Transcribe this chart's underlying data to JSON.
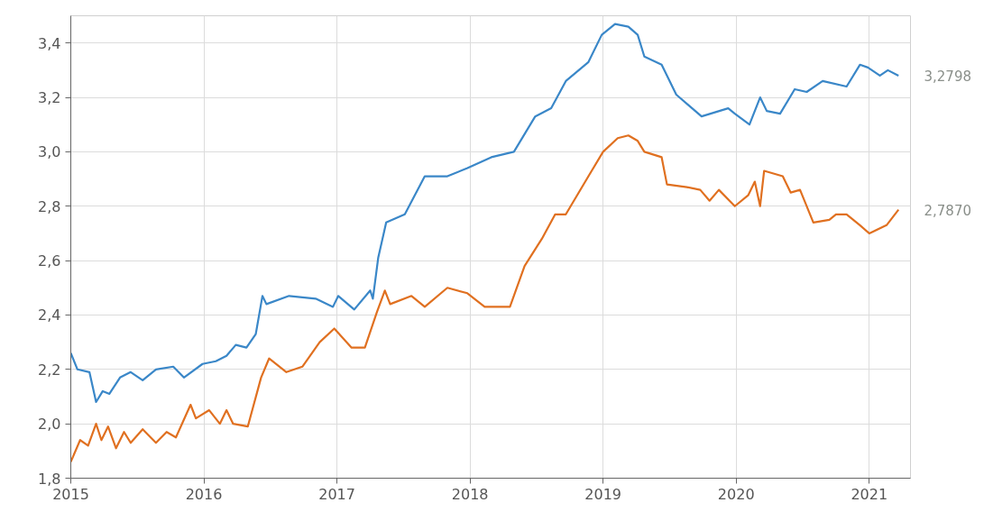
{
  "chart_data": {
    "type": "line",
    "xlim": [
      2015,
      2021.31
    ],
    "ylim": [
      1.8,
      3.5
    ],
    "xticks": [
      2015,
      2016,
      2017,
      2018,
      2019,
      2020,
      2021
    ],
    "yticks": [
      {
        "value": 1.8,
        "label": "1,8"
      },
      {
        "value": 2.0,
        "label": "2,0"
      },
      {
        "value": 2.2,
        "label": "2,2"
      },
      {
        "value": 2.4,
        "label": "2,4"
      },
      {
        "value": 2.6,
        "label": "2,6"
      },
      {
        "value": 2.8,
        "label": "2,8"
      },
      {
        "value": 3.0,
        "label": "3,0"
      },
      {
        "value": 3.2,
        "label": "3,2"
      },
      {
        "value": 3.4,
        "label": "3,4"
      }
    ],
    "grid": true,
    "marker": "none",
    "line_style": "solid",
    "series": [
      {
        "color": "#3a87c8",
        "x": [
          2015.0,
          2015.05,
          2015.14,
          2015.19,
          2015.24,
          2015.29,
          2015.37,
          2015.45,
          2015.54,
          2015.64,
          2015.77,
          2015.85,
          2015.99,
          2016.09,
          2016.17,
          2016.24,
          2016.32,
          2016.39,
          2016.44,
          2016.47,
          2016.64,
          2016.84,
          2016.97,
          2017.01,
          2017.13,
          2017.25,
          2017.27,
          2017.31,
          2017.37,
          2017.51,
          2017.66,
          2017.83,
          2017.98,
          2018.16,
          2018.33,
          2018.49,
          2018.61,
          2018.72,
          2018.89,
          2018.99,
          2019.09,
          2019.19,
          2019.26,
          2019.31,
          2019.44,
          2019.55,
          2019.74,
          2019.94,
          2019.99,
          2020.1,
          2020.18,
          2020.23,
          2020.33,
          2020.44,
          2020.53,
          2020.65,
          2020.83,
          2020.93,
          2020.99,
          2021.08,
          2021.14,
          2021.22
        ],
        "values": [
          2.26,
          2.2,
          2.19,
          2.08,
          2.12,
          2.11,
          2.17,
          2.19,
          2.16,
          2.2,
          2.21,
          2.17,
          2.22,
          2.23,
          2.25,
          2.29,
          2.28,
          2.33,
          2.47,
          2.44,
          2.47,
          2.46,
          2.43,
          2.47,
          2.42,
          2.49,
          2.46,
          2.61,
          2.74,
          2.77,
          2.91,
          2.91,
          2.94,
          2.98,
          3.0,
          3.13,
          3.16,
          3.26,
          3.33,
          3.43,
          3.47,
          3.46,
          3.43,
          3.35,
          3.32,
          3.21,
          3.13,
          3.16,
          3.14,
          3.1,
          3.2,
          3.15,
          3.14,
          3.23,
          3.22,
          3.26,
          3.24,
          3.32,
          3.31,
          3.28,
          3.3,
          3.2798
        ]
      },
      {
        "color": "#e07020",
        "x": [
          2015.0,
          2015.07,
          2015.13,
          2015.19,
          2015.23,
          2015.28,
          2015.34,
          2015.4,
          2015.45,
          2015.54,
          2015.64,
          2015.72,
          2015.79,
          2015.9,
          2015.94,
          2016.04,
          2016.12,
          2016.17,
          2016.22,
          2016.33,
          2016.43,
          2016.49,
          2016.62,
          2016.74,
          2016.87,
          2016.98,
          2017.11,
          2017.21,
          2017.3,
          2017.36,
          2017.4,
          2017.56,
          2017.66,
          2017.83,
          2017.98,
          2018.11,
          2018.3,
          2018.41,
          2018.54,
          2018.64,
          2018.72,
          2018.89,
          2019.0,
          2019.11,
          2019.19,
          2019.26,
          2019.31,
          2019.44,
          2019.48,
          2019.63,
          2019.73,
          2019.8,
          2019.87,
          2019.99,
          2020.09,
          2020.14,
          2020.18,
          2020.21,
          2020.35,
          2020.41,
          2020.48,
          2020.58,
          2020.7,
          2020.75,
          2020.83,
          2020.93,
          2021.0,
          2021.13,
          2021.22
        ],
        "values": [
          1.86,
          1.94,
          1.92,
          2.0,
          1.94,
          1.99,
          1.91,
          1.97,
          1.93,
          1.98,
          1.93,
          1.97,
          1.95,
          2.07,
          2.02,
          2.05,
          2.0,
          2.05,
          2.0,
          1.99,
          2.17,
          2.24,
          2.19,
          2.21,
          2.3,
          2.35,
          2.28,
          2.28,
          2.41,
          2.49,
          2.44,
          2.47,
          2.43,
          2.5,
          2.48,
          2.43,
          2.43,
          2.58,
          2.68,
          2.77,
          2.77,
          2.91,
          3.0,
          3.05,
          3.06,
          3.04,
          3.0,
          2.98,
          2.88,
          2.87,
          2.86,
          2.82,
          2.86,
          2.8,
          2.84,
          2.89,
          2.8,
          2.93,
          2.91,
          2.85,
          2.86,
          2.74,
          2.75,
          2.77,
          2.77,
          2.73,
          2.7,
          2.73,
          2.787
        ]
      }
    ],
    "annotations": [
      {
        "text": "3,2798",
        "x": 2021.22,
        "y": 3.2798
      },
      {
        "text": "2,7870",
        "x": 2021.22,
        "y": 2.787
      }
    ]
  }
}
